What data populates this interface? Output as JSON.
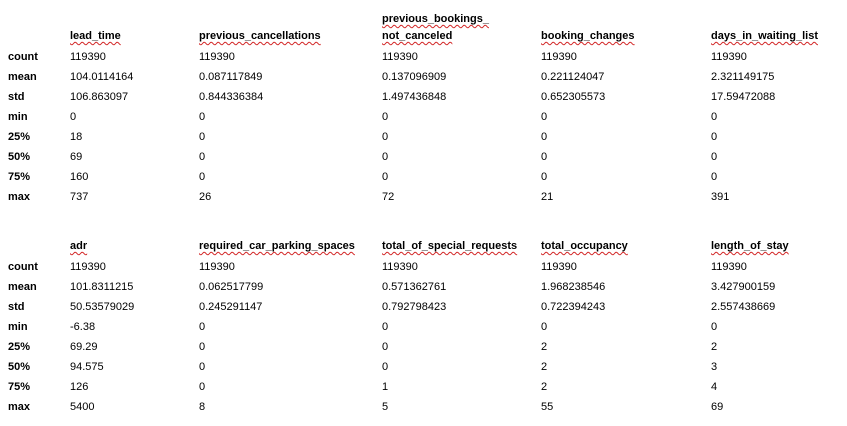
{
  "row_labels": [
    "count",
    "mean",
    "std",
    "min",
    "25%",
    "50%",
    "75%",
    "max"
  ],
  "table1": {
    "columns": [
      {
        "header_top": "",
        "header": "lead_time",
        "values": [
          "119390",
          "104.0114164",
          "106.863097",
          "0",
          "18",
          "69",
          "160",
          "737"
        ]
      },
      {
        "header_top": "",
        "header": "previous_cancellations",
        "values": [
          "119390",
          "0.087117849",
          "0.844336384",
          "0",
          "0",
          "0",
          "0",
          "26"
        ]
      },
      {
        "header_top": "previous_bookings_",
        "header": "not_canceled",
        "values": [
          "119390",
          "0.137096909",
          "1.497436848",
          "0",
          "0",
          "0",
          "0",
          "72"
        ]
      },
      {
        "header_top": "",
        "header": "booking_changes",
        "values": [
          "119390",
          "0.221124047",
          "0.652305573",
          "0",
          "0",
          "0",
          "0",
          "21"
        ]
      },
      {
        "header_top": "",
        "header": "days_in_waiting_list",
        "values": [
          "119390",
          "2.321149175",
          "17.59472088",
          "0",
          "0",
          "0",
          "0",
          "391"
        ]
      }
    ]
  },
  "table2": {
    "columns": [
      {
        "header_top": "",
        "header": "adr",
        "values": [
          "119390",
          "101.8311215",
          "50.53579029",
          "-6.38",
          "69.29",
          "94.575",
          "126",
          "5400"
        ]
      },
      {
        "header_top": "",
        "header": "required_car_parking_spaces",
        "values": [
          "119390",
          "0.062517799",
          "0.245291147",
          "0",
          "0",
          "0",
          "0",
          "8"
        ]
      },
      {
        "header_top": "",
        "header": "total_of_special_requests",
        "values": [
          "119390",
          "0.571362761",
          "0.792798423",
          "0",
          "0",
          "0",
          "1",
          "5"
        ]
      },
      {
        "header_top": "",
        "header": "total_occupancy",
        "values": [
          "119390",
          "1.968238546",
          "0.722394243",
          "0",
          "2",
          "2",
          "2",
          "55"
        ]
      },
      {
        "header_top": "",
        "header": "length_of_stay",
        "values": [
          "119390",
          "3.427900159",
          "2.557438669",
          "0",
          "2",
          "3",
          "4",
          "69"
        ]
      }
    ]
  }
}
